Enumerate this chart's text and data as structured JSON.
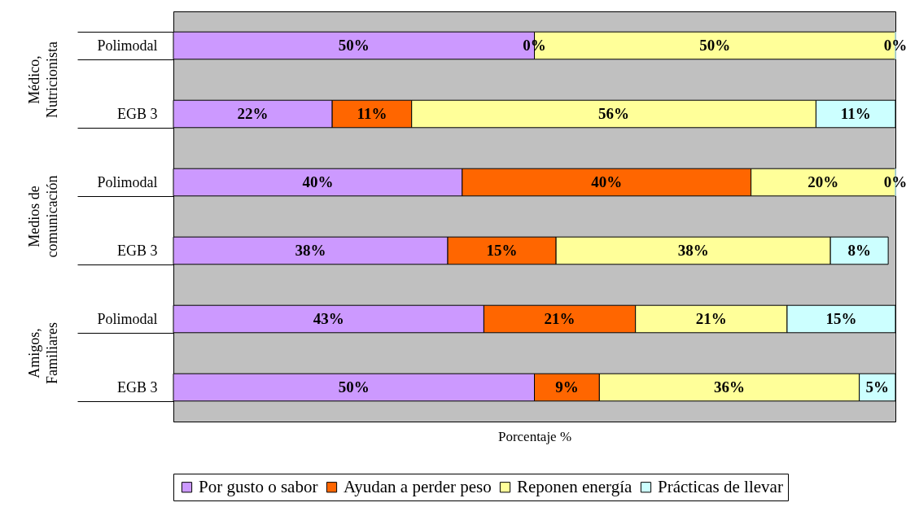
{
  "chart_data": {
    "type": "bar",
    "orientation": "horizontal",
    "stacked": true,
    "xlabel": "Porcentaje %",
    "categories": [
      "Polimodal",
      "EGB 3",
      "Polimodal",
      "EGB 3",
      "Polimodal",
      "EGB 3"
    ],
    "annotations": [
      "Médico, Nutricionista",
      "Medios de comunicación",
      "Amigos, Familiares"
    ],
    "tick_labels": "y",
    "legend": "bottom",
    "grid": false,
    "series": [
      {
        "name": "Por gusto o sabor",
        "color": "#cc99ff",
        "values": [
          50,
          22,
          40,
          38,
          43,
          50
        ],
        "value_labels": [
          "50%",
          "22%",
          "40%",
          "38%",
          "43%",
          "50%"
        ]
      },
      {
        "name": "Ayudan a perder peso",
        "color": "#ff6600",
        "values": [
          0,
          11,
          40,
          15,
          21,
          9
        ],
        "value_labels": [
          "0%",
          "11%",
          "40%",
          "15%",
          "21%",
          "9%"
        ]
      },
      {
        "name": "Reponen energía",
        "color": "#ffff99",
        "values": [
          50,
          56,
          20,
          38,
          21,
          36
        ],
        "value_labels": [
          "50%",
          "56%",
          "20%",
          "38%",
          "21%",
          "36%"
        ]
      },
      {
        "name": "Prácticas de llevar",
        "color": "#ccffff",
        "values": [
          0,
          11,
          0,
          8,
          15,
          5
        ],
        "value_labels": [
          "0%",
          "11%",
          "0%",
          "8%",
          "15%",
          "5%"
        ]
      }
    ]
  }
}
